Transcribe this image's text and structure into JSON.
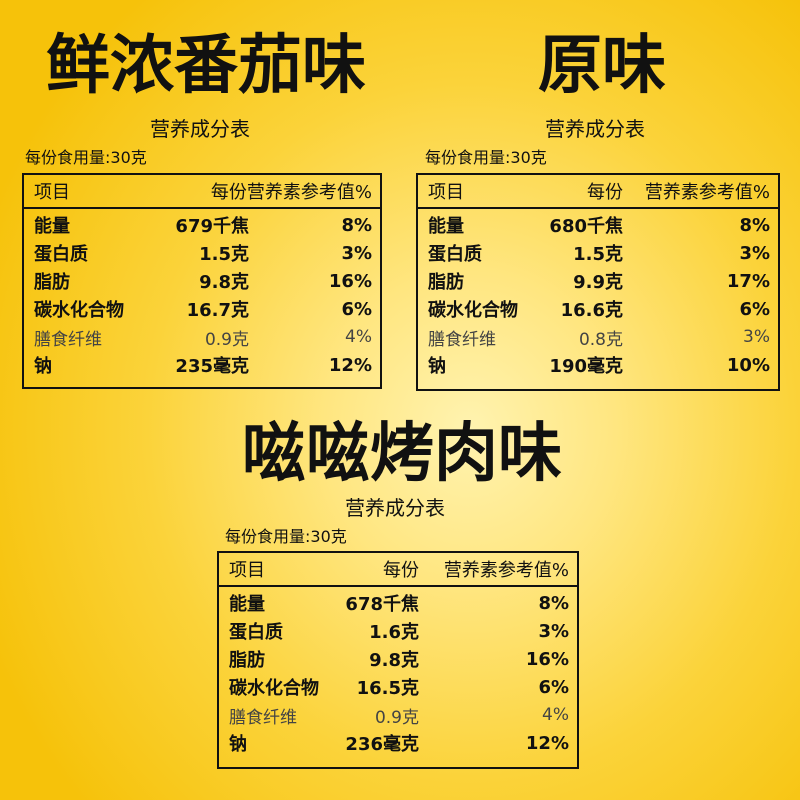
{
  "tomato": {
    "title": "鲜浓番茄味",
    "caption": "营养成分表",
    "serving": "每份食用量:30克",
    "header": {
      "item": "项目",
      "per": "每份",
      "nrv": "营养素参考值%"
    },
    "rows": [
      {
        "name": "能量",
        "amount": "679千焦",
        "nrv": "8%"
      },
      {
        "name": "蛋白质",
        "amount": "1.5克",
        "nrv": "3%"
      },
      {
        "name": "脂肪",
        "amount": "9.8克",
        "nrv": "16%"
      },
      {
        "name": "碳水化合物",
        "amount": "16.7克",
        "nrv": "6%"
      },
      {
        "name": "膳食纤维",
        "amount": "0.9克",
        "nrv": "4%"
      },
      {
        "name": "钠",
        "amount": "235毫克",
        "nrv": "12%"
      }
    ]
  },
  "original": {
    "title": "原味",
    "caption": "营养成分表",
    "serving": "每份食用量:30克",
    "header": {
      "item": "项目",
      "per": "每份",
      "nrv": "营养素参考值%"
    },
    "rows": [
      {
        "name": "能量",
        "amount": "680千焦",
        "nrv": "8%"
      },
      {
        "name": "蛋白质",
        "amount": "1.5克",
        "nrv": "3%"
      },
      {
        "name": "脂肪",
        "amount": "9.9克",
        "nrv": "17%"
      },
      {
        "name": "碳水化合物",
        "amount": "16.6克",
        "nrv": "6%"
      },
      {
        "name": "膳食纤维",
        "amount": "0.8克",
        "nrv": "3%"
      },
      {
        "name": "钠",
        "amount": "190毫克",
        "nrv": "10%"
      }
    ]
  },
  "bbq": {
    "title": "嗞嗞烤肉味",
    "caption": "营养成分表",
    "serving": "每份食用量:30克",
    "header": {
      "item": "项目",
      "per": "每份",
      "nrv": "营养素参考值%"
    },
    "rows": [
      {
        "name": "能量",
        "amount": "678千焦",
        "nrv": "8%"
      },
      {
        "name": "蛋白质",
        "amount": "1.6克",
        "nrv": "3%"
      },
      {
        "name": "脂肪",
        "amount": "9.8克",
        "nrv": "16%"
      },
      {
        "name": "碳水化合物",
        "amount": "16.5克",
        "nrv": "6%"
      },
      {
        "name": "膳食纤维",
        "amount": "0.9克",
        "nrv": "4%"
      },
      {
        "name": "钠",
        "amount": "236毫克",
        "nrv": "12%"
      }
    ]
  }
}
